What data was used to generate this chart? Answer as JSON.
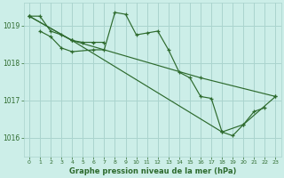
{
  "title": "Graphe pression niveau de la mer (hPa)",
  "background_color": "#cceee8",
  "grid_color": "#aad4ce",
  "line_color": "#2d6a2d",
  "xlim": [
    -0.5,
    23.5
  ],
  "ylim": [
    1015.5,
    1019.6
  ],
  "yticks": [
    1016,
    1017,
    1018,
    1019
  ],
  "xticks": [
    0,
    1,
    2,
    3,
    4,
    5,
    6,
    7,
    8,
    9,
    10,
    11,
    12,
    13,
    14,
    15,
    16,
    17,
    18,
    19,
    20,
    21,
    22,
    23
  ],
  "series": [
    {
      "x": [
        0,
        1,
        2,
        3,
        4,
        5,
        6,
        7
      ],
      "y": [
        1019.25,
        1019.25,
        1018.85,
        1018.75,
        1018.6,
        1018.55,
        1018.55,
        1018.55
      ]
    },
    {
      "x": [
        1,
        2,
        3,
        4,
        6,
        7,
        8,
        9,
        10,
        11,
        12,
        13,
        14,
        15,
        16,
        17,
        18,
        19,
        20,
        21,
        22
      ],
      "y": [
        1018.85,
        1018.7,
        1018.4,
        1018.3,
        1018.35,
        1018.35,
        1019.35,
        1019.3,
        1018.75,
        1018.8,
        1018.85,
        1018.35,
        1017.75,
        1017.6,
        1017.1,
        1017.05,
        1016.15,
        1016.05,
        1016.35,
        1016.7,
        1016.8
      ]
    },
    {
      "x": [
        0,
        4,
        16,
        23
      ],
      "y": [
        1019.25,
        1018.6,
        1017.6,
        1017.1
      ]
    },
    {
      "x": [
        0,
        4,
        18,
        20,
        23
      ],
      "y": [
        1019.25,
        1018.6,
        1016.15,
        1016.35,
        1017.1
      ]
    }
  ]
}
